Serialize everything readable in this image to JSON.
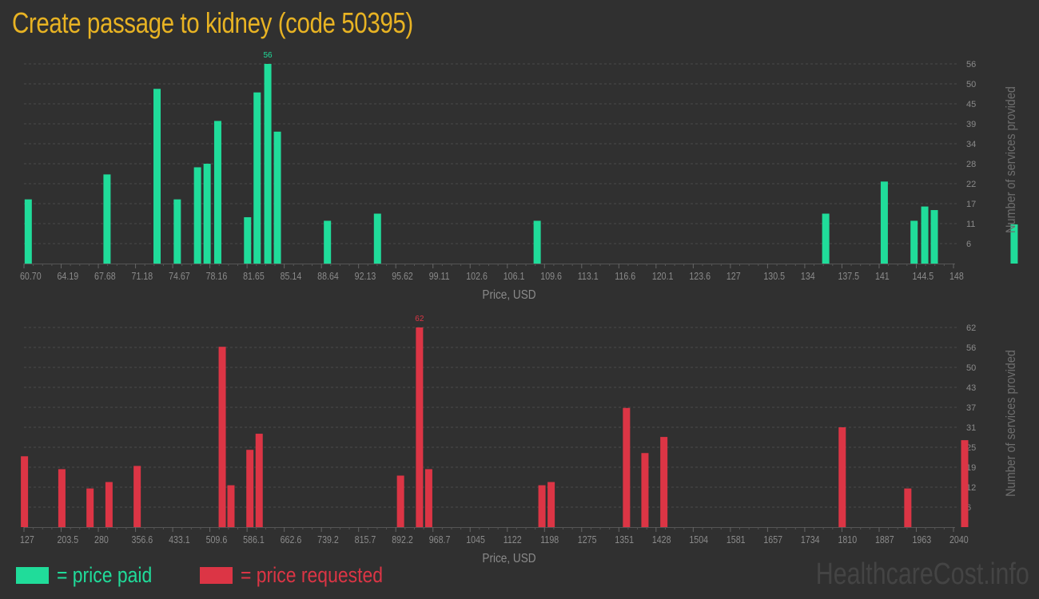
{
  "title": "Create passage to kidney (code 50395)",
  "legend": {
    "paid": {
      "label": "= price paid",
      "color": "#20dc9a"
    },
    "requested": {
      "label": "= price requested",
      "color": "#dc3545"
    }
  },
  "watermark": "HealthcareCost.info",
  "chart_data": [
    {
      "type": "bar",
      "title": "Price paid",
      "xlabel": "Price, USD",
      "ylabel": "Number of services provided",
      "color": "#20dc9a",
      "x_ticks": [
        "60.70",
        "64.19",
        "67.68",
        "71.18",
        "74.67",
        "78.16",
        "81.65",
        "85.14",
        "88.64",
        "92.13",
        "95.62",
        "99.11",
        "102.6",
        "106.1",
        "109.6",
        "113.1",
        "116.6",
        "120.1",
        "123.6",
        "127",
        "130.5",
        "134",
        "137.5",
        "141",
        "144.5",
        "148"
      ],
      "y_ticks": [
        6,
        11,
        17,
        22,
        28,
        34,
        39,
        45,
        50,
        56
      ],
      "ylim": [
        0,
        56
      ],
      "xlim": [
        60.7,
        148
      ],
      "grid": true,
      "max_label": "56",
      "x": [
        61.1,
        68.5,
        73.2,
        75.1,
        77.0,
        77.9,
        78.9,
        81.7,
        82.6,
        83.6,
        84.5,
        89.2,
        93.9,
        108.9,
        136.0,
        141.5,
        144.3,
        145.3,
        146.2,
        153.7
      ],
      "values": [
        18,
        25,
        49,
        18,
        27,
        28,
        40,
        13,
        48,
        56,
        37,
        12,
        14,
        12,
        14,
        23,
        12,
        16,
        15,
        11
      ]
    },
    {
      "type": "bar",
      "title": "Price requested",
      "xlabel": "Price, USD",
      "ylabel": "Number of services provided",
      "color": "#dc3545",
      "x_ticks": [
        "127",
        "203.5",
        "280",
        "356.6",
        "433.1",
        "509.6",
        "586.1",
        "662.6",
        "739.2",
        "815.7",
        "892.2",
        "968.7",
        "1045",
        "1122",
        "1198",
        "1275",
        "1351",
        "1428",
        "1504",
        "1581",
        "1657",
        "1734",
        "1810",
        "1887",
        "1963",
        "2040"
      ],
      "y_ticks": [
        6,
        12,
        19,
        25,
        31,
        37,
        43,
        50,
        56,
        62
      ],
      "ylim": [
        0,
        62
      ],
      "xlim": [
        127,
        2040
      ],
      "grid": true,
      "max_label": "62",
      "x": [
        128,
        205,
        263,
        302,
        360,
        535,
        553,
        592,
        611,
        902,
        941,
        960,
        1193,
        1212,
        1367,
        1405,
        1444,
        1811,
        1946,
        2063
      ],
      "values": [
        22,
        18,
        12,
        14,
        19,
        56,
        13,
        24,
        29,
        16,
        62,
        18,
        13,
        14,
        37,
        23,
        28,
        31,
        12,
        27
      ]
    }
  ]
}
